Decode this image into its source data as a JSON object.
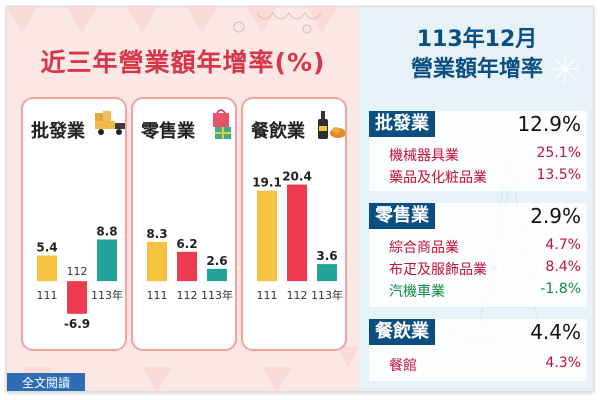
{
  "left_title": "近三年營業額年增率(%)",
  "cards": [
    {
      "name": "批發業",
      "icon": "delivery-truck-icon"
    },
    {
      "name": "零售業",
      "icon": "shopping-bag-gift-icon"
    },
    {
      "name": "餐飲業",
      "icon": "wine-bottle-food-icon"
    }
  ],
  "chart_data": [
    {
      "type": "bar",
      "title": "批發業",
      "categories": [
        "111",
        "112",
        "113年"
      ],
      "values": [
        5.4,
        -6.9,
        8.8
      ],
      "value_labels": [
        "5.4",
        "-6.9",
        "8.8"
      ],
      "bar_colors": [
        "#f5c242",
        "#ec3a4e",
        "#23a29a"
      ],
      "ylim": [
        -8,
        22
      ]
    },
    {
      "type": "bar",
      "title": "零售業",
      "categories": [
        "111",
        "112",
        "113年"
      ],
      "values": [
        8.3,
        6.2,
        2.6
      ],
      "value_labels": [
        "8.3",
        "6.2",
        "2.6"
      ],
      "bar_colors": [
        "#f5c242",
        "#ec3a4e",
        "#23a29a"
      ],
      "ylim": [
        -8,
        22
      ]
    },
    {
      "type": "bar",
      "title": "餐飲業",
      "categories": [
        "111",
        "112",
        "113年"
      ],
      "values": [
        19.1,
        20.4,
        3.6
      ],
      "value_labels": [
        "19.1",
        "20.4",
        "3.6"
      ],
      "bar_colors": [
        "#f5c242",
        "#ec3a4e",
        "#23a29a"
      ],
      "ylim": [
        -8,
        22
      ]
    }
  ],
  "right": {
    "heading1": "113年12月",
    "heading2": "營業額年增率",
    "sections": [
      {
        "name": "批發業",
        "value": "12.9%",
        "items": [
          {
            "name": "機械器具業",
            "value": "25.1%"
          },
          {
            "name": "藥品及化粧品業",
            "value": "13.5%"
          }
        ]
      },
      {
        "name": "零售業",
        "value": "2.9%",
        "items": [
          {
            "name": "綜合商品業",
            "value": "4.7%"
          },
          {
            "name": "布疋及服飾品業",
            "value": "8.4%"
          },
          {
            "name": "汽機車業",
            "value": "-1.8%"
          }
        ]
      },
      {
        "name": "餐飲業",
        "value": "4.4%",
        "items": [
          {
            "name": "餐館",
            "value": "4.3%"
          }
        ]
      }
    ]
  },
  "footer_button": "全文閱讀",
  "colors": {
    "accent_red": "#d8354a",
    "navy": "#0b4f82",
    "card_border": "#f2a39f"
  }
}
